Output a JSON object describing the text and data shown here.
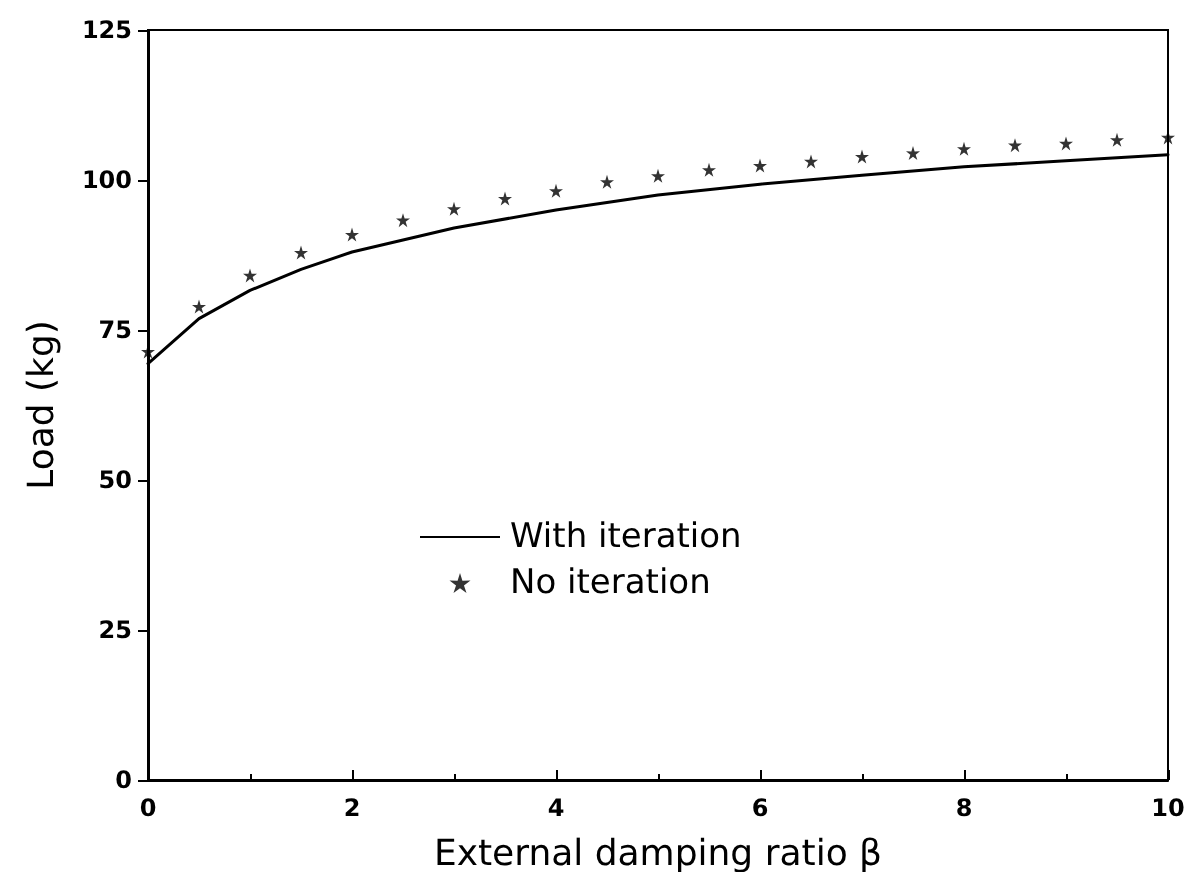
{
  "chart_data": {
    "type": "line",
    "xlabel": "External damping ratio β",
    "ylabel": "Load (kg)",
    "xlim": [
      0,
      10
    ],
    "xticks": [
      0,
      2,
      4,
      6,
      8,
      10
    ],
    "ylim": [
      0,
      125
    ],
    "yticks": [
      0,
      25,
      50,
      75,
      100,
      125
    ],
    "grid": false,
    "legend": "bottom",
    "series": [
      {
        "name": "With iteration",
        "color": "#000000",
        "marker": "none",
        "line_style": "solid",
        "x": [
          0,
          0.5,
          1,
          1.5,
          2,
          3,
          4,
          5,
          6,
          7,
          8,
          9,
          10
        ],
        "values": [
          69.4,
          76.9,
          81.6,
          85.1,
          88,
          92,
          95,
          97.5,
          99.3,
          100.8,
          102.2,
          103.2,
          104.2
        ]
      },
      {
        "name": "No iteration",
        "color": "#000000",
        "type": "scatter",
        "marker": "star",
        "x": [
          0,
          0.5,
          1,
          1.5,
          2,
          2.5,
          3,
          3.5,
          4,
          4.5,
          5,
          5.5,
          6,
          6.5,
          7,
          7.5,
          8,
          8.5,
          9,
          9.5,
          10
        ],
        "values": [
          71.4,
          78.9,
          84.1,
          87.9,
          90.9,
          93.3,
          95.2,
          96.9,
          98.2,
          99.7,
          100.7,
          101.7,
          102.4,
          103.1,
          103.9,
          104.5,
          105.2,
          105.8,
          106.1,
          106.7,
          107.1
        ]
      }
    ]
  }
}
